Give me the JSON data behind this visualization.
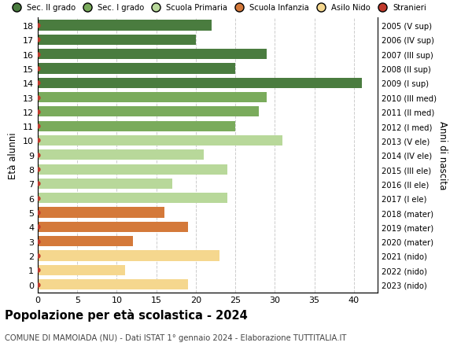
{
  "ages": [
    18,
    17,
    16,
    15,
    14,
    13,
    12,
    11,
    10,
    9,
    8,
    7,
    6,
    5,
    4,
    3,
    2,
    1,
    0
  ],
  "values": [
    22,
    20,
    29,
    25,
    41,
    29,
    28,
    25,
    31,
    21,
    24,
    17,
    24,
    16,
    19,
    12,
    23,
    11,
    19
  ],
  "right_labels": [
    "2005 (V sup)",
    "2006 (IV sup)",
    "2007 (III sup)",
    "2008 (II sup)",
    "2009 (I sup)",
    "2010 (III med)",
    "2011 (II med)",
    "2012 (I med)",
    "2013 (V ele)",
    "2014 (IV ele)",
    "2015 (III ele)",
    "2016 (II ele)",
    "2017 (I ele)",
    "2018 (mater)",
    "2019 (mater)",
    "2020 (mater)",
    "2021 (nido)",
    "2022 (nido)",
    "2023 (nido)"
  ],
  "bar_colors": [
    "#4a7c3f",
    "#4a7c3f",
    "#4a7c3f",
    "#4a7c3f",
    "#4a7c3f",
    "#7aab5c",
    "#7aab5c",
    "#7aab5c",
    "#b8d89a",
    "#b8d89a",
    "#b8d89a",
    "#b8d89a",
    "#b8d89a",
    "#d4793a",
    "#d4793a",
    "#d4793a",
    "#f5d78e",
    "#f5d78e",
    "#f5d78e"
  ],
  "dot_color": "#c0392b",
  "legend_labels": [
    "Sec. II grado",
    "Sec. I grado",
    "Scuola Primaria",
    "Scuola Infanzia",
    "Asilo Nido",
    "Stranieri"
  ],
  "legend_colors": [
    "#4a7c3f",
    "#7aab5c",
    "#b8d89a",
    "#d4793a",
    "#f5d78e",
    "#c0392b"
  ],
  "ylabel_left": "Età alunni",
  "ylabel_right": "Anni di nascita",
  "xlim": [
    0,
    43
  ],
  "xticks": [
    0,
    5,
    10,
    15,
    20,
    25,
    30,
    35,
    40
  ],
  "title": "Popolazione per età scolastica - 2024",
  "subtitle": "COMUNE DI MAMOIADA (NU) - Dati ISTAT 1° gennaio 2024 - Elaborazione TUTTITALIA.IT",
  "background_color": "#ffffff",
  "grid_color": "#cccccc",
  "bar_height": 0.72
}
